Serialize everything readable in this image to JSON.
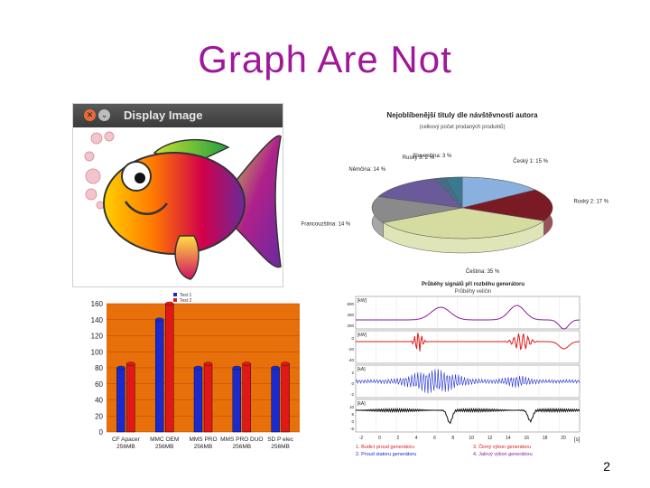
{
  "slide": {
    "title": "Graph Are Not",
    "page_number": "2"
  },
  "fish_window": {
    "title": "Display Image",
    "close_icon": "close-icon",
    "minimize_icon": "chevron-down-icon"
  },
  "chart_data": [
    {
      "type": "pie",
      "title": "Nejoblíbenější tituly dle návštěvnosti autora",
      "subtitle": "(celkový počet prodaných produktů)",
      "slices": [
        {
          "label": "Český 1: 15 %",
          "value": 15,
          "color": "#8ab0e0"
        },
        {
          "label": "Ruský 2: 17 %",
          "value": 17,
          "color": "#7a1a24"
        },
        {
          "label": "Čeština: 35 %",
          "value": 35,
          "color": "#d6dca0"
        },
        {
          "label": "Francouzština: 14 %",
          "value": 14,
          "color": "#8a8a8a"
        },
        {
          "label": "Němčina: 14 %",
          "value": 14,
          "color": "#6a5a9a"
        },
        {
          "label": "Rusky 3: 2 %",
          "value": 2,
          "color": "#4a6a8a"
        },
        {
          "label": "Slovenčina: 3 %",
          "value": 3,
          "color": "#3a7a90"
        }
      ]
    },
    {
      "type": "bar",
      "title": "",
      "legend": [
        "Test 1",
        "Test 2"
      ],
      "categories": [
        "CF Apacer 256MB",
        "MMC OEM 256MB",
        "MMS PRO 256MB",
        "MMS PRO DUO 256MB",
        "SD P elec 256MB"
      ],
      "series": [
        {
          "name": "Test 1",
          "values": [
            80,
            140,
            80,
            80,
            80
          ],
          "color": "#1a2ad0"
        },
        {
          "name": "Test 2",
          "values": [
            85,
            160,
            85,
            85,
            85
          ],
          "color": "#e01818"
        }
      ],
      "ylim": [
        0,
        160
      ],
      "yticks": [
        "0",
        "20",
        "40",
        "60",
        "80",
        "100",
        "120",
        "140",
        "160"
      ],
      "background": "#e8700a"
    },
    {
      "type": "line",
      "title": "Průběhy signálů při rozběhu generátoru",
      "subtitle": "Průběhy veličin",
      "panels": [
        {
          "ylabel": "[kW]",
          "color": "#8a1aa0",
          "yticks": [
            "600",
            "400",
            "200"
          ]
        },
        {
          "ylabel": "[kW]",
          "color": "#e01818",
          "yticks": [
            "0",
            "-20",
            "-40"
          ]
        },
        {
          "ylabel": "[kA]",
          "color": "#1a2ad0",
          "yticks": [
            "2",
            "0",
            "-2"
          ]
        },
        {
          "ylabel": "[kA]",
          "color": "#111111",
          "yticks": [
            "10",
            "5",
            "0",
            "-5"
          ]
        }
      ],
      "xticks": [
        "-2",
        "0",
        "2",
        "4",
        "6",
        "8",
        "10",
        "12",
        "14",
        "16",
        "18",
        "20"
      ],
      "xlabel": "[s]",
      "legend": [
        {
          "label": "1. Budicí proud generátoru",
          "color": "#e01818"
        },
        {
          "label": "2. Proud statoru generátoru",
          "color": "#1a2ad0"
        },
        {
          "label": "3. Činný výkon generátoru",
          "color": "#e01818"
        },
        {
          "label": "4. Jalový výkon generátoru",
          "color": "#8a1aa0"
        }
      ]
    }
  ]
}
